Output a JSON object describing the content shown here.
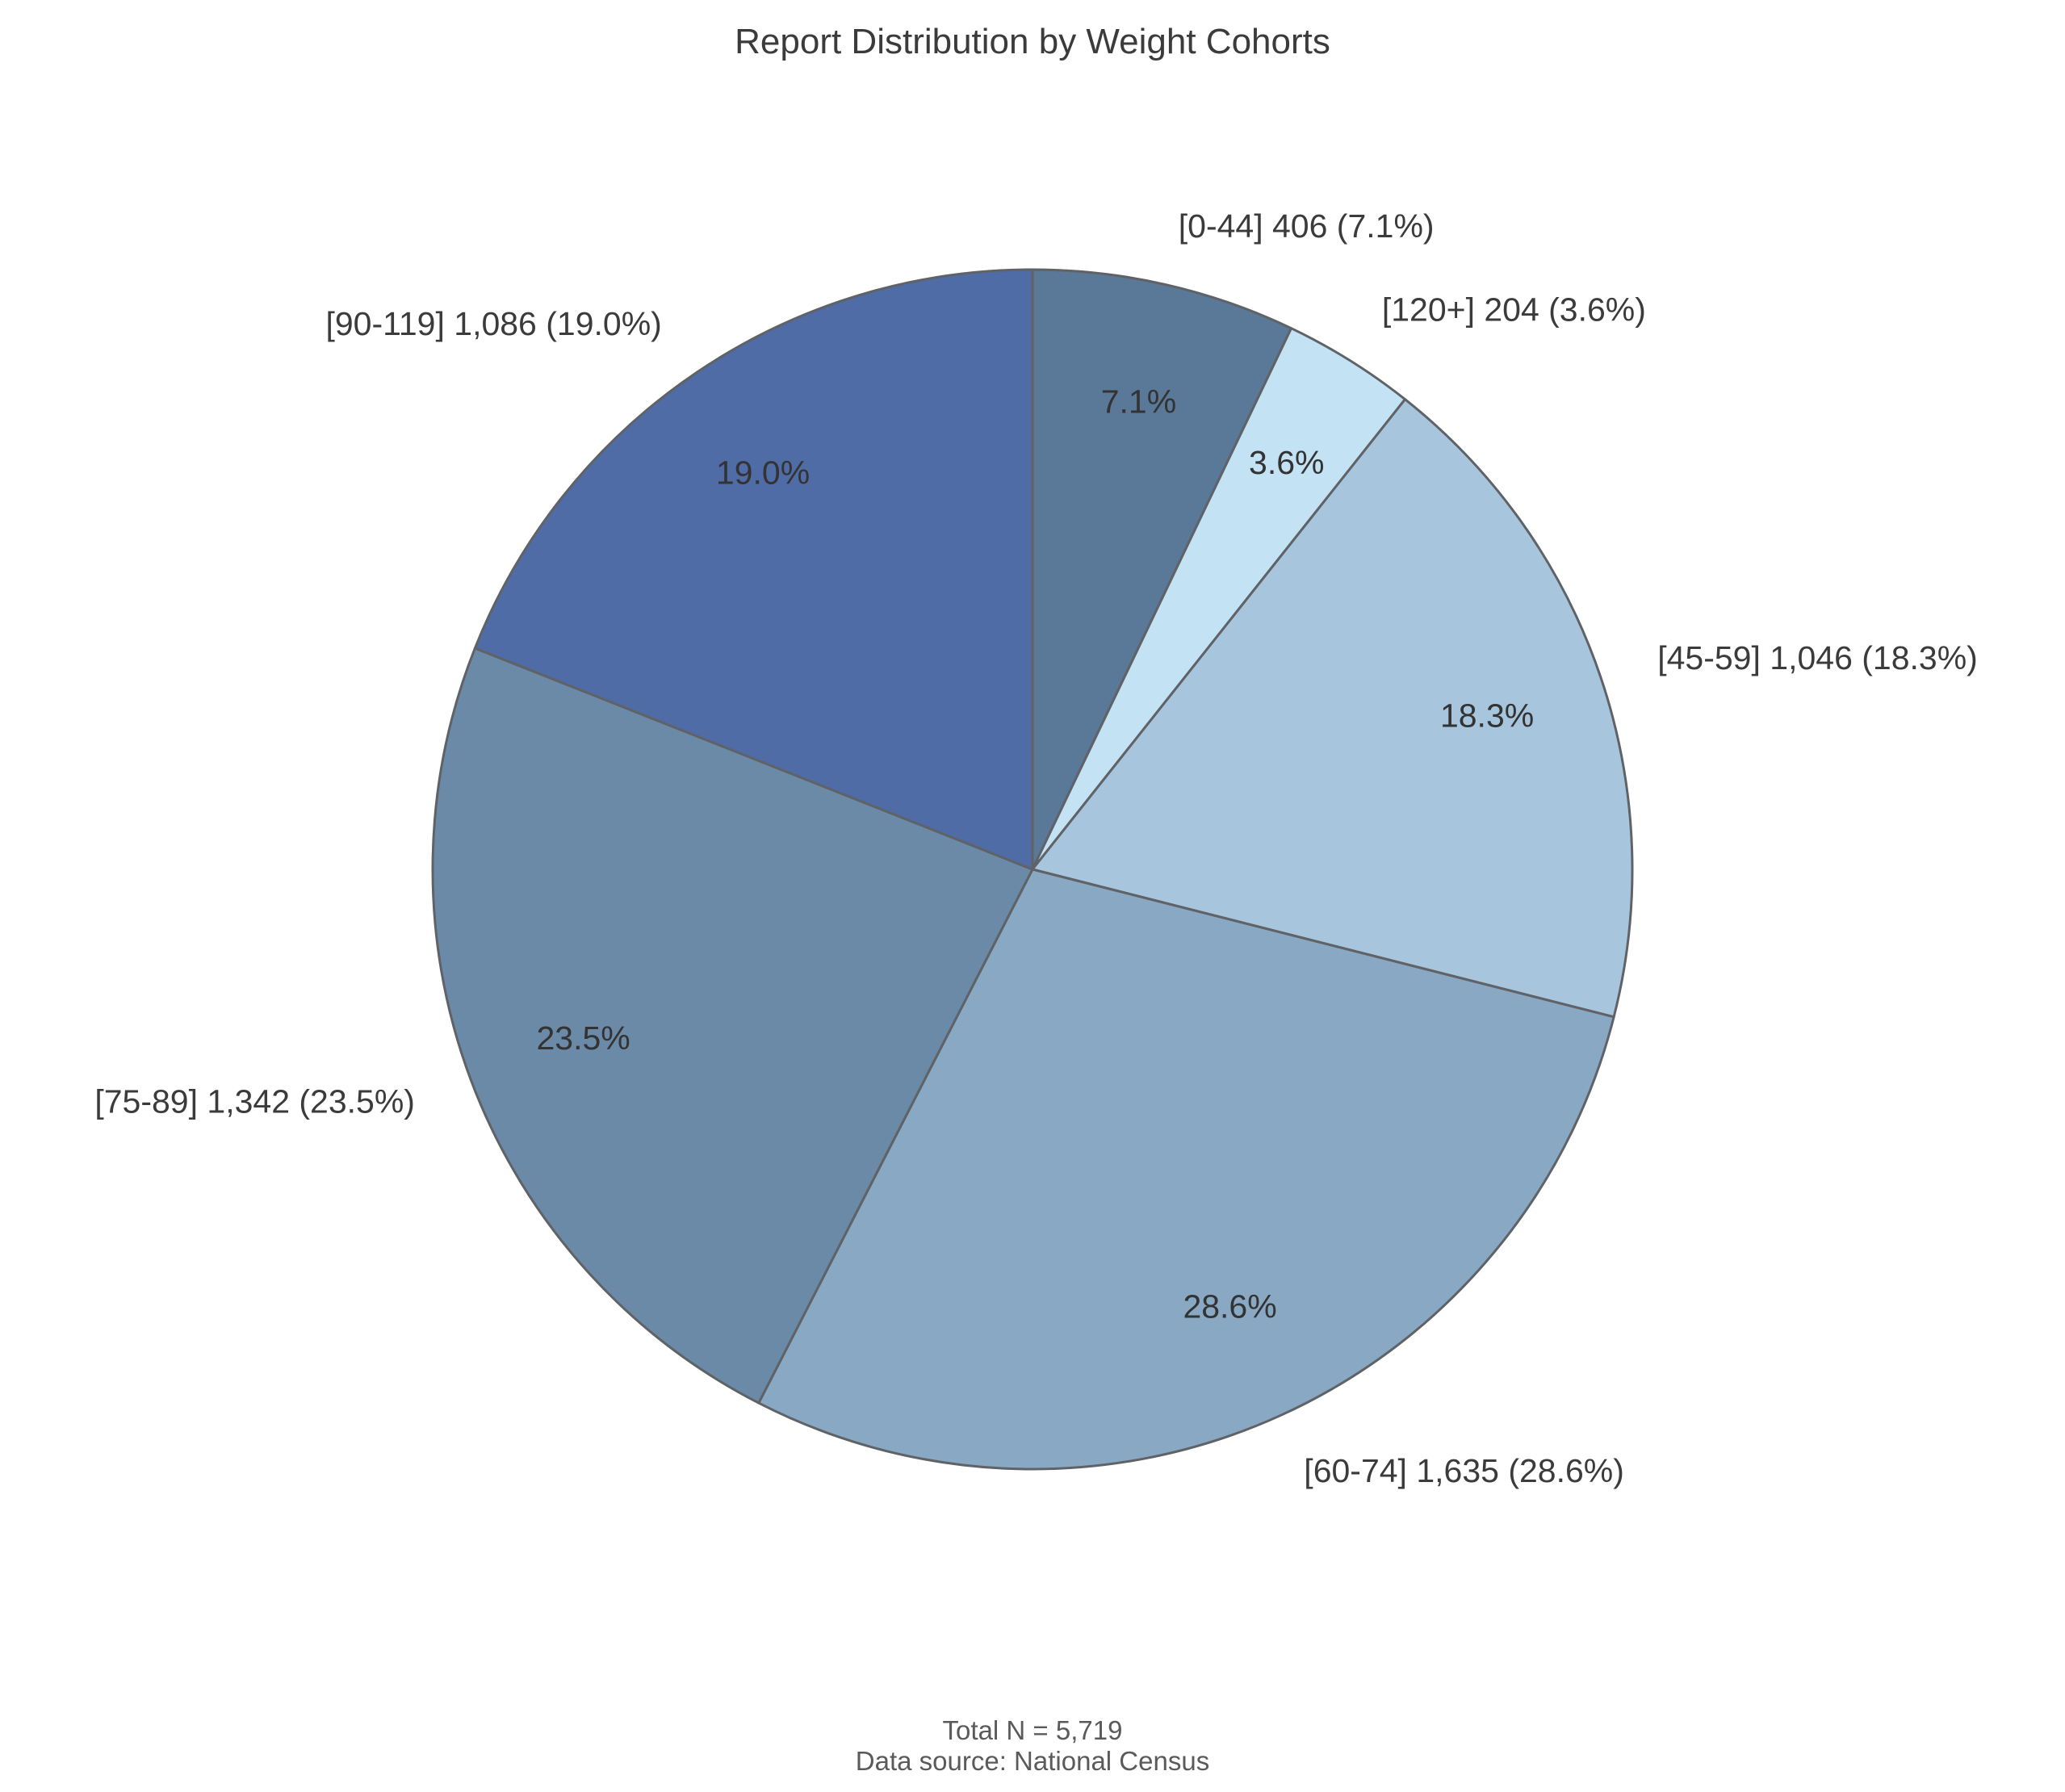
{
  "chart_data": {
    "type": "pie",
    "title": "Report Distribution by Weight Cohorts",
    "categories": [
      "[0-44]",
      "[120+]",
      "[45-59]",
      "[60-74]",
      "[75-89]",
      "[90-119]"
    ],
    "values": [
      406,
      204,
      1046,
      1635,
      1342,
      1086
    ],
    "percent_labels": [
      "7.1%",
      "3.6%",
      "18.3%",
      "28.6%",
      "23.5%",
      "19.0%"
    ],
    "outer_labels": [
      "[0-44] 406 (7.1%)",
      "[120+] 204 (3.6%)",
      "[45-59] 1,046 (18.3%)",
      "[60-74] 1,635 (28.6%)",
      "[75-89] 1,342 (23.5%)",
      "[90-119] 1,086 (19.0%)"
    ],
    "colors": [
      "#5a7898",
      "#c3e2f4",
      "#a7c5dc",
      "#88a8c3",
      "#6b8aa8",
      "#4f6ca6"
    ],
    "edge_color": "#5f6266",
    "start_angle": "90",
    "direction": "clockwise"
  },
  "footer": {
    "total": "Total N = 5,719",
    "source": "Data source: National Census"
  }
}
